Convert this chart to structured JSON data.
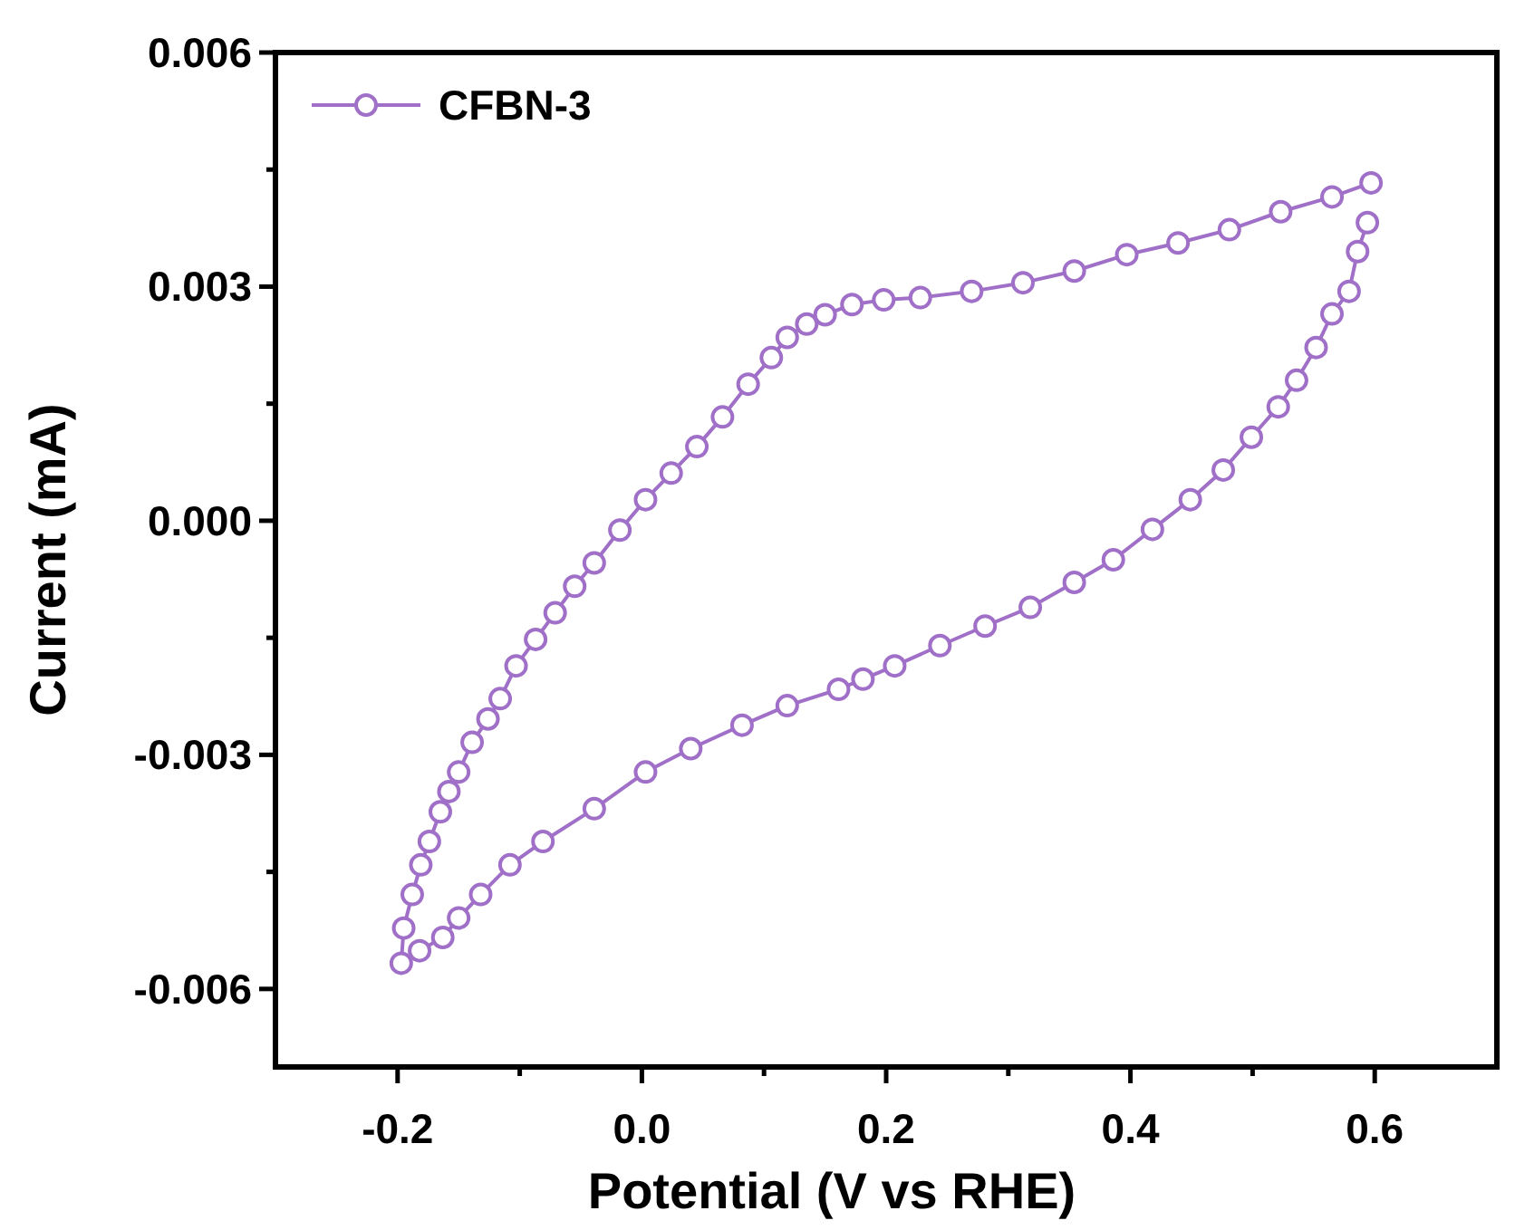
{
  "chart_data": {
    "type": "line",
    "xlabel": "Potential (V vs RHE)",
    "ylabel": "Current (mA)",
    "xlim": [
      -0.3,
      0.7
    ],
    "ylim": [
      -0.007,
      0.006
    ],
    "xticks": [
      {
        "value": -0.2,
        "label": "-0.2"
      },
      {
        "value": -0.1,
        "label": null
      },
      {
        "value": 0,
        "label": "0.0"
      },
      {
        "value": 0.1,
        "label": null
      },
      {
        "value": 0.2,
        "label": "0.2"
      },
      {
        "value": 0.3,
        "label": null
      },
      {
        "value": 0.4,
        "label": "0.4"
      },
      {
        "value": 0.5,
        "label": null
      },
      {
        "value": 0.6,
        "label": "0.6"
      }
    ],
    "yticks": [
      {
        "value": -0.006,
        "label": "-0.006"
      },
      {
        "value": -0.0045,
        "label": null
      },
      {
        "value": -0.003,
        "label": "-0.003"
      },
      {
        "value": -0.0015,
        "label": null
      },
      {
        "value": 0,
        "label": "0.000"
      },
      {
        "value": 0.0015,
        "label": null
      },
      {
        "value": 0.003,
        "label": "0.003"
      },
      {
        "value": 0.0045,
        "label": null
      },
      {
        "value": 0.006,
        "label": "0.006"
      }
    ],
    "grid": false,
    "legend": "top left",
    "marker": "circle",
    "line_style": "solid",
    "series": [
      {
        "name": "CFBN-3",
        "color": "#a070c8",
        "x": [
          -0.197,
          -0.195,
          -0.188,
          -0.181,
          -0.174,
          -0.165,
          -0.158,
          -0.15,
          -0.139,
          -0.126,
          -0.116,
          -0.103,
          -0.087,
          -0.071,
          -0.055,
          -0.039,
          -0.018,
          0.003,
          0.024,
          0.045,
          0.066,
          0.087,
          0.106,
          0.119,
          0.135,
          0.15,
          0.172,
          0.198,
          0.228,
          0.27,
          0.312,
          0.354,
          0.397,
          0.439,
          0.481,
          0.523,
          0.565,
          0.597
        ],
        "values": [
          -0.00567,
          -0.00522,
          -0.00479,
          -0.00441,
          -0.00411,
          -0.00373,
          -0.00347,
          -0.00322,
          -0.00284,
          -0.00254,
          -0.00228,
          -0.00186,
          -0.00152,
          -0.00118,
          -0.00084,
          -0.00054,
          -0.00012,
          0.00027,
          0.00061,
          0.00095,
          0.00133,
          0.00175,
          0.00209,
          0.00235,
          0.00252,
          0.00264,
          0.00277,
          0.00283,
          0.00286,
          0.00294,
          0.00305,
          0.0032,
          0.00341,
          0.00356,
          0.00373,
          0.00396,
          0.00415,
          0.00433
        ]
      },
      {
        "color": "#a070c8",
        "x": [
          0.594,
          0.586,
          0.579,
          0.565,
          0.552,
          0.536,
          0.521,
          0.499,
          0.476,
          0.449,
          0.418,
          0.386,
          0.354,
          0.318,
          0.281,
          0.244,
          0.207,
          0.181,
          0.161,
          0.119,
          0.082,
          0.04,
          0.003,
          -0.039,
          -0.081,
          -0.108,
          -0.132,
          -0.15,
          -0.163,
          -0.182
        ],
        "values": [
          0.00382,
          0.00345,
          0.00294,
          0.00265,
          0.00222,
          0.0018,
          0.00146,
          0.00107,
          0.00065,
          0.00027,
          -0.00011,
          -0.0005,
          -0.00079,
          -0.00111,
          -0.00135,
          -0.0016,
          -0.00186,
          -0.00203,
          -0.00216,
          -0.00237,
          -0.00262,
          -0.00292,
          -0.00322,
          -0.00369,
          -0.00411,
          -0.00441,
          -0.00479,
          -0.00509,
          -0.00534,
          -0.00551
        ]
      }
    ]
  }
}
